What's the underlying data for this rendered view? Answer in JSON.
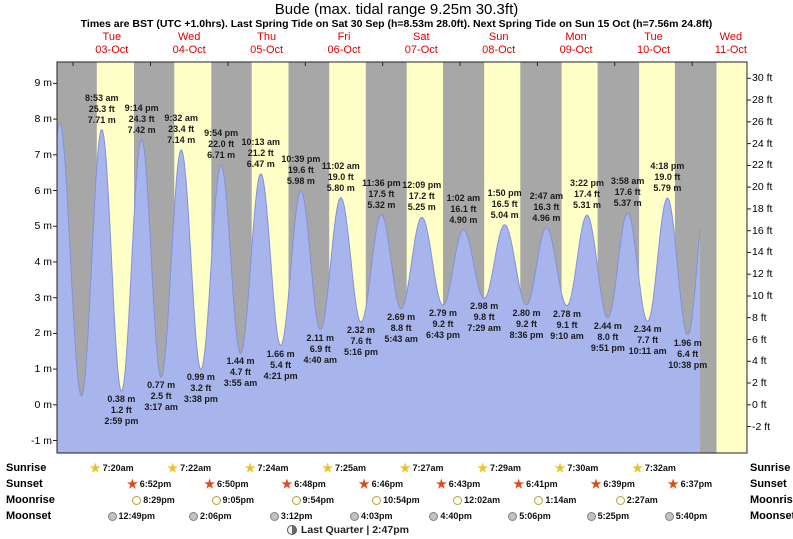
{
  "title": "Bude (max. tidal range 9.25m 30.3ft)",
  "subtitle": "Times are BST (UTC +1.0hrs). Last Spring Tide on Sat 30 Sep (h=8.53m 28.0ft). Next Spring Tide on Sun 15 Oct (h=7.56m 24.8ft)",
  "colors": {
    "day_band": "#ffffc8",
    "night_band": "#a7a7a7",
    "tide_fill": "#a8b4ec",
    "tide_stroke": "#8193d8",
    "date_label": "#e00000",
    "axis_line": "#222222",
    "annotation_text": "#1c1c1c",
    "sunrise_star": "#e8c32a",
    "sunset_star": "#e04818"
  },
  "chart_data": {
    "type": "area",
    "title": "Bude (max. tidal range 9.25m 30.3ft)",
    "ylabel_left_unit": "m",
    "ylabel_right_unit": "ft",
    "y_axis_m_range": [
      -1.35,
      9.6
    ],
    "time_axis_hours_from_oct3_midnight": [
      -5,
      209
    ],
    "curve_end_t": 194.5,
    "day_columns": [
      {
        "name": "Tue",
        "date": "03-Oct",
        "noon_t": 12
      },
      {
        "name": "Wed",
        "date": "04-Oct",
        "noon_t": 36
      },
      {
        "name": "Thu",
        "date": "05-Oct",
        "noon_t": 60
      },
      {
        "name": "Fri",
        "date": "06-Oct",
        "noon_t": 84
      },
      {
        "name": "Sat",
        "date": "07-Oct",
        "noon_t": 108
      },
      {
        "name": "Sun",
        "date": "08-Oct",
        "noon_t": 132
      },
      {
        "name": "Mon",
        "date": "09-Oct",
        "noon_t": 156
      },
      {
        "name": "Tue",
        "date": "10-Oct",
        "noon_t": 180
      },
      {
        "name": "Wed",
        "date": "11-Oct",
        "noon_t": 204
      }
    ],
    "y_axis_m": [
      {
        "v": 9,
        "label": "9 m"
      },
      {
        "v": 8,
        "label": "8 m"
      },
      {
        "v": 7,
        "label": "7 m"
      },
      {
        "v": 6,
        "label": "6 m"
      },
      {
        "v": 5,
        "label": "5 m"
      },
      {
        "v": 4,
        "label": "4 m"
      },
      {
        "v": 3,
        "label": "3 m"
      },
      {
        "v": 2,
        "label": "2 m"
      },
      {
        "v": 1,
        "label": "1 m"
      },
      {
        "v": 0,
        "label": "0 m"
      },
      {
        "v": -1,
        "label": "-1 m"
      }
    ],
    "y_axis_ft": [
      {
        "v": 30,
        "label": "30 ft"
      },
      {
        "v": 28,
        "label": "28 ft"
      },
      {
        "v": 26,
        "label": "26 ft"
      },
      {
        "v": 24,
        "label": "24 ft"
      },
      {
        "v": 22,
        "label": "22 ft"
      },
      {
        "v": 20,
        "label": "20 ft"
      },
      {
        "v": 18,
        "label": "18 ft"
      },
      {
        "v": 16,
        "label": "16 ft"
      },
      {
        "v": 14,
        "label": "14 ft"
      },
      {
        "v": 12,
        "label": "12 ft"
      },
      {
        "v": 10,
        "label": "10 ft"
      },
      {
        "v": 8,
        "label": "8 ft"
      },
      {
        "v": 6,
        "label": "6 ft"
      },
      {
        "v": 4,
        "label": "4 ft"
      },
      {
        "v": 2,
        "label": "2 ft"
      },
      {
        "v": 0,
        "label": "0 ft"
      },
      {
        "v": -2,
        "label": "-2 ft"
      }
    ],
    "daylight": [
      {
        "rise": 7.33,
        "set": 18.87
      },
      {
        "rise": 7.37,
        "set": 18.83
      },
      {
        "rise": 7.4,
        "set": 18.8
      },
      {
        "rise": 7.42,
        "set": 18.77
      },
      {
        "rise": 7.45,
        "set": 18.72
      },
      {
        "rise": 7.48,
        "set": 18.68
      },
      {
        "rise": 7.5,
        "set": 18.65
      },
      {
        "rise": 7.53,
        "set": 18.62
      },
      {
        "rise": 7.55,
        "set": 18.58
      }
    ],
    "extremes": [
      {
        "t": -9.7,
        "h": 0.2,
        "type": "low"
      },
      {
        "t": -4.2,
        "h": 7.9,
        "type": "high"
      },
      {
        "t": 2.6,
        "h": 0.25,
        "type": "low"
      },
      {
        "t": 8.88,
        "h": 7.71,
        "type": "high",
        "lines": [
          "8:53 am",
          "25.3 ft",
          "7.71 m"
        ]
      },
      {
        "t": 14.98,
        "h": 0.38,
        "type": "low",
        "lines": [
          "0.38 m",
          "1.2 ft",
          "2:59 pm"
        ]
      },
      {
        "t": 21.23,
        "h": 7.42,
        "type": "high",
        "lines": [
          "9:14 pm",
          "24.3 ft",
          "7.42 m"
        ]
      },
      {
        "t": 27.28,
        "h": 0.77,
        "type": "low",
        "lines": [
          "0.77 m",
          "2.5 ft",
          "3:17 am"
        ]
      },
      {
        "t": 33.53,
        "h": 7.14,
        "type": "high",
        "lines": [
          "9:32 am",
          "23.4 ft",
          "7.14 m"
        ]
      },
      {
        "t": 39.63,
        "h": 0.99,
        "type": "low",
        "lines": [
          "0.99 m",
          "3.2 ft",
          "3:38 pm"
        ]
      },
      {
        "t": 45.9,
        "h": 6.71,
        "type": "high",
        "lines": [
          "9:54 pm",
          "22.0 ft",
          "6.71 m"
        ]
      },
      {
        "t": 51.92,
        "h": 1.44,
        "type": "low",
        "lines": [
          "1.44 m",
          "4.7 ft",
          "3:55 am"
        ]
      },
      {
        "t": 58.22,
        "h": 6.47,
        "type": "high",
        "lines": [
          "10:13 am",
          "21.2 ft",
          "6.47 m"
        ]
      },
      {
        "t": 64.35,
        "h": 1.66,
        "type": "low",
        "lines": [
          "1.66 m",
          "5.4 ft",
          "4:21 pm"
        ]
      },
      {
        "t": 70.65,
        "h": 5.98,
        "type": "high",
        "lines": [
          "10:39 pm",
          "19.6 ft",
          "5.98 m"
        ]
      },
      {
        "t": 76.67,
        "h": 2.11,
        "type": "low",
        "lines": [
          "2.11 m",
          "6.9 ft",
          "4:40 am"
        ]
      },
      {
        "t": 83.03,
        "h": 5.8,
        "type": "high",
        "lines": [
          "11:02 am",
          "19.0 ft",
          "5.80 m"
        ]
      },
      {
        "t": 89.27,
        "h": 2.32,
        "type": "low",
        "lines": [
          "2.32 m",
          "7.6 ft",
          "5:16 pm"
        ]
      },
      {
        "t": 95.6,
        "h": 5.32,
        "type": "high",
        "lines": [
          "11:36 pm",
          "17.5 ft",
          "5.32 m"
        ]
      },
      {
        "t": 101.72,
        "h": 2.69,
        "type": "low",
        "lines": [
          "2.69 m",
          "8.8 ft",
          "5:43 am"
        ]
      },
      {
        "t": 108.15,
        "h": 5.25,
        "type": "high",
        "lines": [
          "12:09 pm",
          "17.2 ft",
          "5.25 m"
        ]
      },
      {
        "t": 114.72,
        "h": 2.79,
        "type": "low",
        "lines": [
          "2.79 m",
          "9.2 ft",
          "6:43 pm"
        ]
      },
      {
        "t": 121.03,
        "h": 4.9,
        "type": "high",
        "lines": [
          "1:02 am",
          "16.1 ft",
          "4.90 m"
        ]
      },
      {
        "t": 127.48,
        "h": 2.98,
        "type": "low",
        "lines": [
          "2.98 m",
          "9.8 ft",
          "7:29 am"
        ]
      },
      {
        "t": 133.83,
        "h": 5.04,
        "type": "high",
        "lines": [
          "1:50 pm",
          "16.5 ft",
          "5.04 m"
        ]
      },
      {
        "t": 140.6,
        "h": 2.8,
        "type": "low",
        "lines": [
          "2.80 m",
          "9.2 ft",
          "8:36 pm"
        ]
      },
      {
        "t": 146.78,
        "h": 4.96,
        "type": "high",
        "lines": [
          "2:47 am",
          "16.3 ft",
          "4.96 m"
        ]
      },
      {
        "t": 153.17,
        "h": 2.78,
        "type": "low",
        "lines": [
          "2.78 m",
          "9.1 ft",
          "9:10 am"
        ]
      },
      {
        "t": 159.37,
        "h": 5.31,
        "type": "high",
        "lines": [
          "3:22 pm",
          "17.4 ft",
          "5.31 m"
        ]
      },
      {
        "t": 165.85,
        "h": 2.44,
        "type": "low",
        "lines": [
          "2.44 m",
          "8.0 ft",
          "9:51 pm"
        ]
      },
      {
        "t": 171.97,
        "h": 5.37,
        "type": "high",
        "lines": [
          "3:58 am",
          "17.6 ft",
          "5.37 m"
        ]
      },
      {
        "t": 178.18,
        "h": 2.34,
        "type": "low",
        "lines": [
          "2.34 m",
          "7.7 ft",
          "10:11 am"
        ]
      },
      {
        "t": 184.3,
        "h": 5.79,
        "type": "high",
        "lines": [
          "4:18 pm",
          "19.0 ft",
          "5.79 m"
        ]
      },
      {
        "t": 190.63,
        "h": 1.96,
        "type": "low",
        "lines": [
          "1.96 m",
          "6.4 ft",
          "10:38 pm"
        ]
      },
      {
        "t": 196.75,
        "h": 6.3,
        "type": "high"
      }
    ]
  },
  "astro": {
    "labels": [
      "Sunrise",
      "Sunset",
      "Moonrise",
      "Moonset"
    ],
    "rows": [
      {
        "label": "Sunrise",
        "icon": "sunrise-star",
        "entries": [
          {
            "day": 0,
            "time": "7:20am",
            "tod": 7.33
          },
          {
            "day": 1,
            "time": "7:22am",
            "tod": 7.37
          },
          {
            "day": 2,
            "time": "7:24am",
            "tod": 7.4
          },
          {
            "day": 3,
            "time": "7:25am",
            "tod": 7.42
          },
          {
            "day": 4,
            "time": "7:27am",
            "tod": 7.45
          },
          {
            "day": 5,
            "time": "7:29am",
            "tod": 7.48
          },
          {
            "day": 6,
            "time": "7:30am",
            "tod": 7.5
          },
          {
            "day": 7,
            "time": "7:32am",
            "tod": 7.53
          }
        ]
      },
      {
        "label": "Sunset",
        "icon": "sunset-star",
        "entries": [
          {
            "day": 0,
            "time": "6:52pm",
            "tod": 18.87
          },
          {
            "day": 1,
            "time": "6:50pm",
            "tod": 18.83
          },
          {
            "day": 2,
            "time": "6:48pm",
            "tod": 18.8
          },
          {
            "day": 3,
            "time": "6:46pm",
            "tod": 18.77
          },
          {
            "day": 4,
            "time": "6:43pm",
            "tod": 18.72
          },
          {
            "day": 5,
            "time": "6:41pm",
            "tod": 18.68
          },
          {
            "day": 6,
            "time": "6:39pm",
            "tod": 18.65
          },
          {
            "day": 7,
            "time": "6:37pm",
            "tod": 18.62
          }
        ]
      },
      {
        "label": "Moonrise",
        "icon": "moonrise-circle",
        "entries": [
          {
            "day": 0,
            "time": "8:29pm",
            "tod": 20.48
          },
          {
            "day": 1,
            "time": "9:05pm",
            "tod": 21.08
          },
          {
            "day": 2,
            "time": "9:54pm",
            "tod": 21.9
          },
          {
            "day": 3,
            "time": "10:54pm",
            "tod": 22.9
          },
          {
            "day": 5,
            "time": "12:02am",
            "tod": 0.03
          },
          {
            "day": 6,
            "time": "1:14am",
            "tod": 1.23
          },
          {
            "day": 7,
            "time": "2:27am",
            "tod": 2.45
          }
        ]
      },
      {
        "label": "Moonset",
        "icon": "moonset-circle",
        "entries": [
          {
            "day": 0,
            "time": "12:49pm",
            "tod": 12.82
          },
          {
            "day": 1,
            "time": "2:06pm",
            "tod": 14.1
          },
          {
            "day": 2,
            "time": "3:12pm",
            "tod": 15.2
          },
          {
            "day": 3,
            "time": "4:03pm",
            "tod": 16.05
          },
          {
            "day": 4,
            "time": "4:40pm",
            "tod": 16.67
          },
          {
            "day": 5,
            "time": "5:06pm",
            "tod": 17.1
          },
          {
            "day": 6,
            "time": "5:25pm",
            "tod": 17.42
          },
          {
            "day": 7,
            "time": "5:40pm",
            "tod": 17.67
          }
        ]
      }
    ],
    "footer": "Last Quarter | 2:47pm"
  }
}
